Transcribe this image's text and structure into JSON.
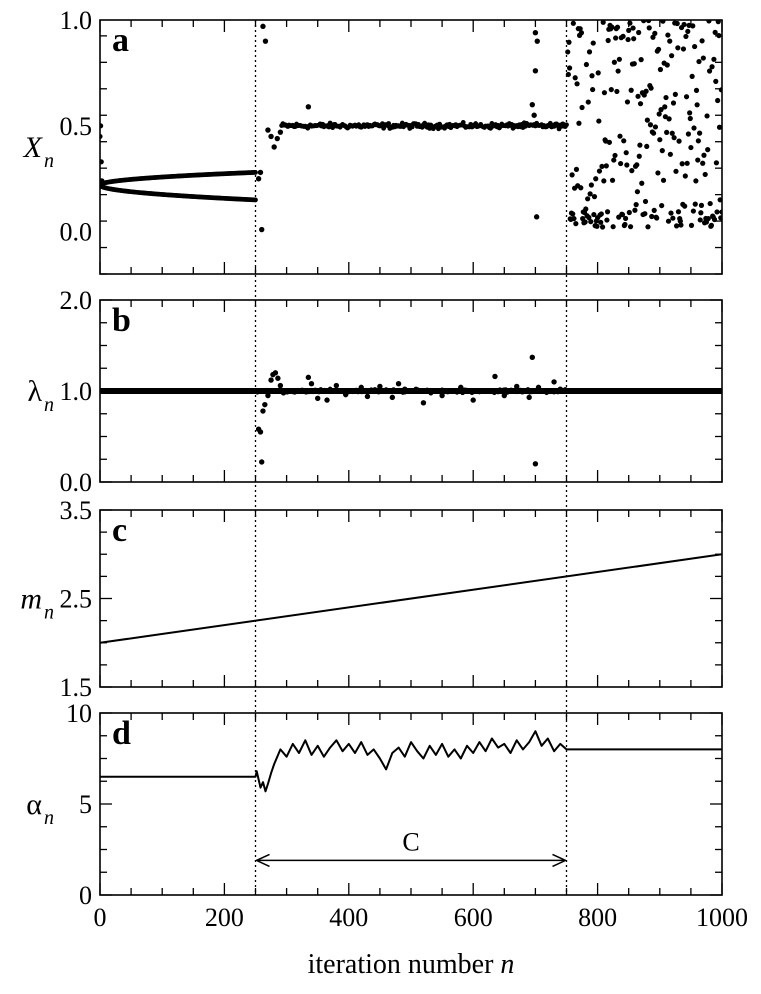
{
  "chart_data": [
    {
      "panel": "a",
      "type": "scatter",
      "ylabel": "X",
      "ylabel_sub": "n",
      "xlim": [
        0,
        1000
      ],
      "ylim": [
        -0.2,
        1.0
      ],
      "yticks": [
        "0.0",
        "0.5",
        "1.0"
      ],
      "yticks_values": [
        0.0,
        0.5,
        1.0
      ],
      "grid": false,
      "segments": [
        {
          "x_range": [
            0,
            250
          ],
          "branches": [
            {
              "y_start": 0.22,
              "y_end": 0.28
            },
            {
              "y_start": 0.22,
              "y_end": 0.15
            }
          ]
        },
        {
          "x_range": [
            250,
            750
          ],
          "level": 0.5,
          "transient": [
            [
              255,
              0.25
            ],
            [
              258,
              0.28
            ],
            [
              260,
              0.01
            ],
            [
              262,
              0.97
            ],
            [
              266,
              0.9
            ],
            [
              270,
              0.48
            ],
            [
              275,
              0.45
            ],
            [
              280,
              0.4
            ],
            [
              285,
              0.44
            ],
            [
              290,
              0.47
            ]
          ],
          "outliers": [
            [
              335,
              0.59
            ],
            [
              700,
              0.94
            ],
            [
              703,
              0.9
            ],
            [
              700,
              0.76
            ],
            [
              702,
              0.07
            ],
            [
              695,
              0.6
            ],
            [
              698,
              0.55
            ]
          ]
        },
        {
          "x_range": [
            750,
            1000
          ],
          "pattern": "chaotic",
          "y_range": [
            0.02,
            1.0
          ]
        }
      ]
    },
    {
      "panel": "b",
      "type": "scatter",
      "ylabel": "λ",
      "ylabel_sub": "n",
      "xlim": [
        0,
        1000
      ],
      "ylim": [
        0.0,
        2.0
      ],
      "yticks": [
        "0.0",
        "1.0",
        "2.0"
      ],
      "yticks_values": [
        0.0,
        1.0,
        2.0
      ],
      "grid": false,
      "baseline": 1.0,
      "points": [
        [
          255,
          0.58
        ],
        [
          258,
          0.55
        ],
        [
          260,
          0.22
        ],
        [
          262,
          0.78
        ],
        [
          265,
          0.85
        ],
        [
          270,
          0.95
        ],
        [
          275,
          1.12
        ],
        [
          278,
          1.18
        ],
        [
          282,
          1.2
        ],
        [
          286,
          1.14
        ],
        [
          290,
          1.06
        ],
        [
          295,
          0.98
        ],
        [
          335,
          1.15
        ],
        [
          340,
          1.08
        ],
        [
          350,
          0.92
        ],
        [
          365,
          0.9
        ],
        [
          380,
          1.06
        ],
        [
          395,
          0.96
        ],
        [
          420,
          1.04
        ],
        [
          430,
          0.94
        ],
        [
          450,
          1.05
        ],
        [
          470,
          0.93
        ],
        [
          480,
          1.08
        ],
        [
          490,
          1.02
        ],
        [
          520,
          0.87
        ],
        [
          550,
          0.95
        ],
        [
          580,
          1.04
        ],
        [
          600,
          0.9
        ],
        [
          620,
          1.0
        ],
        [
          635,
          1.16
        ],
        [
          650,
          0.95
        ],
        [
          670,
          1.05
        ],
        [
          690,
          0.93
        ],
        [
          695,
          1.37
        ],
        [
          700,
          0.2
        ],
        [
          705,
          1.04
        ],
        [
          730,
          1.1
        ],
        [
          740,
          1.02
        ]
      ]
    },
    {
      "panel": "c",
      "type": "line",
      "ylabel": "m",
      "ylabel_sub": "n",
      "xlim": [
        0,
        1000
      ],
      "ylim": [
        1.5,
        3.5
      ],
      "yticks": [
        "1.5",
        "2.5",
        "3.5"
      ],
      "yticks_values": [
        1.5,
        2.5,
        3.5
      ],
      "grid": false,
      "x": [
        0,
        1000
      ],
      "y": [
        2.0,
        3.0
      ]
    },
    {
      "panel": "d",
      "type": "line",
      "ylabel": "α",
      "ylabel_sub": "n",
      "xlabel": "iteration number",
      "xlabel_var": "n",
      "xlim": [
        0,
        1000
      ],
      "ylim": [
        0,
        10
      ],
      "yticks": [
        "0",
        "5",
        "10"
      ],
      "yticks_values": [
        0,
        5,
        10
      ],
      "xticks": [
        "0",
        "200",
        "400",
        "600",
        "800",
        "1000"
      ],
      "xticks_values": [
        0,
        200,
        400,
        600,
        800,
        1000
      ],
      "grid": false,
      "x": [
        0,
        250,
        252,
        258,
        262,
        266,
        270,
        275,
        280,
        290,
        300,
        310,
        320,
        330,
        340,
        350,
        360,
        370,
        380,
        390,
        400,
        410,
        420,
        430,
        440,
        450,
        460,
        470,
        480,
        490,
        500,
        510,
        520,
        530,
        540,
        550,
        560,
        570,
        580,
        590,
        600,
        610,
        620,
        630,
        640,
        650,
        660,
        670,
        680,
        690,
        700,
        710,
        720,
        730,
        740,
        750,
        752,
        1000
      ],
      "y": [
        6.5,
        6.5,
        6.8,
        5.9,
        6.2,
        5.7,
        6.1,
        6.7,
        7.2,
        8.0,
        7.6,
        8.3,
        7.8,
        8.5,
        7.7,
        8.2,
        7.6,
        8.1,
        8.5,
        7.9,
        8.3,
        7.8,
        8.4,
        7.7,
        8.0,
        7.5,
        6.9,
        7.8,
        8.1,
        7.6,
        8.4,
        7.9,
        7.5,
        8.2,
        7.7,
        8.3,
        7.6,
        8.0,
        7.5,
        8.2,
        7.8,
        8.4,
        7.9,
        8.6,
        8.1,
        8.3,
        7.8,
        8.5,
        8.0,
        8.4,
        9.0,
        8.2,
        8.6,
        7.9,
        8.3,
        8.0,
        8.0,
        8.0
      ]
    }
  ],
  "annotations": {
    "vlines_x": [
      250,
      750
    ],
    "region_label": "C",
    "region_range": [
      250,
      750
    ],
    "region_y": 1.9
  },
  "panel_letters": [
    "a",
    "b",
    "c",
    "d"
  ]
}
